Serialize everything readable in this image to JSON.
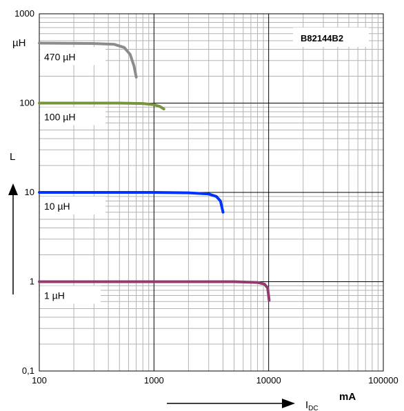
{
  "chart_data": {
    "type": "line",
    "title": "B82144B2",
    "x_scale": "log",
    "y_scale": "log",
    "xlim": [
      100,
      100000
    ],
    "ylim": [
      0.1,
      1000
    ],
    "x_ticks": [
      "100",
      "1000",
      "10000",
      "100000"
    ],
    "y_ticks": [
      "0,1",
      "1",
      "10",
      "100",
      "1000"
    ],
    "x_unit": "mA",
    "x_symbol": "I",
    "x_symbol_sub": "DC",
    "y_symbol": "L",
    "y_unit": "µH",
    "grid": true,
    "series": [
      {
        "name": "470 µH",
        "color": "#8c8c8c",
        "points": [
          [
            100,
            470
          ],
          [
            300,
            465
          ],
          [
            450,
            455
          ],
          [
            550,
            420
          ],
          [
            620,
            350
          ],
          [
            670,
            260
          ],
          [
            700,
            195
          ]
        ]
      },
      {
        "name": "100 µH",
        "color": "#77933c",
        "points": [
          [
            100,
            100
          ],
          [
            500,
            100
          ],
          [
            800,
            99
          ],
          [
            1000,
            96
          ],
          [
            1120,
            92
          ],
          [
            1220,
            86
          ]
        ]
      },
      {
        "name": "10 µH",
        "color": "#0033ff",
        "points": [
          [
            100,
            10
          ],
          [
            1000,
            10
          ],
          [
            2000,
            9.9
          ],
          [
            3000,
            9.6
          ],
          [
            3500,
            9.0
          ],
          [
            3800,
            8.0
          ],
          [
            4000,
            6.0
          ]
        ]
      },
      {
        "name": "1 µH",
        "color": "#953a6c",
        "points": [
          [
            100,
            1
          ],
          [
            1000,
            1
          ],
          [
            5000,
            1
          ],
          [
            8000,
            0.98
          ],
          [
            9200,
            0.94
          ],
          [
            9800,
            0.85
          ],
          [
            10100,
            0.62
          ]
        ]
      }
    ]
  }
}
